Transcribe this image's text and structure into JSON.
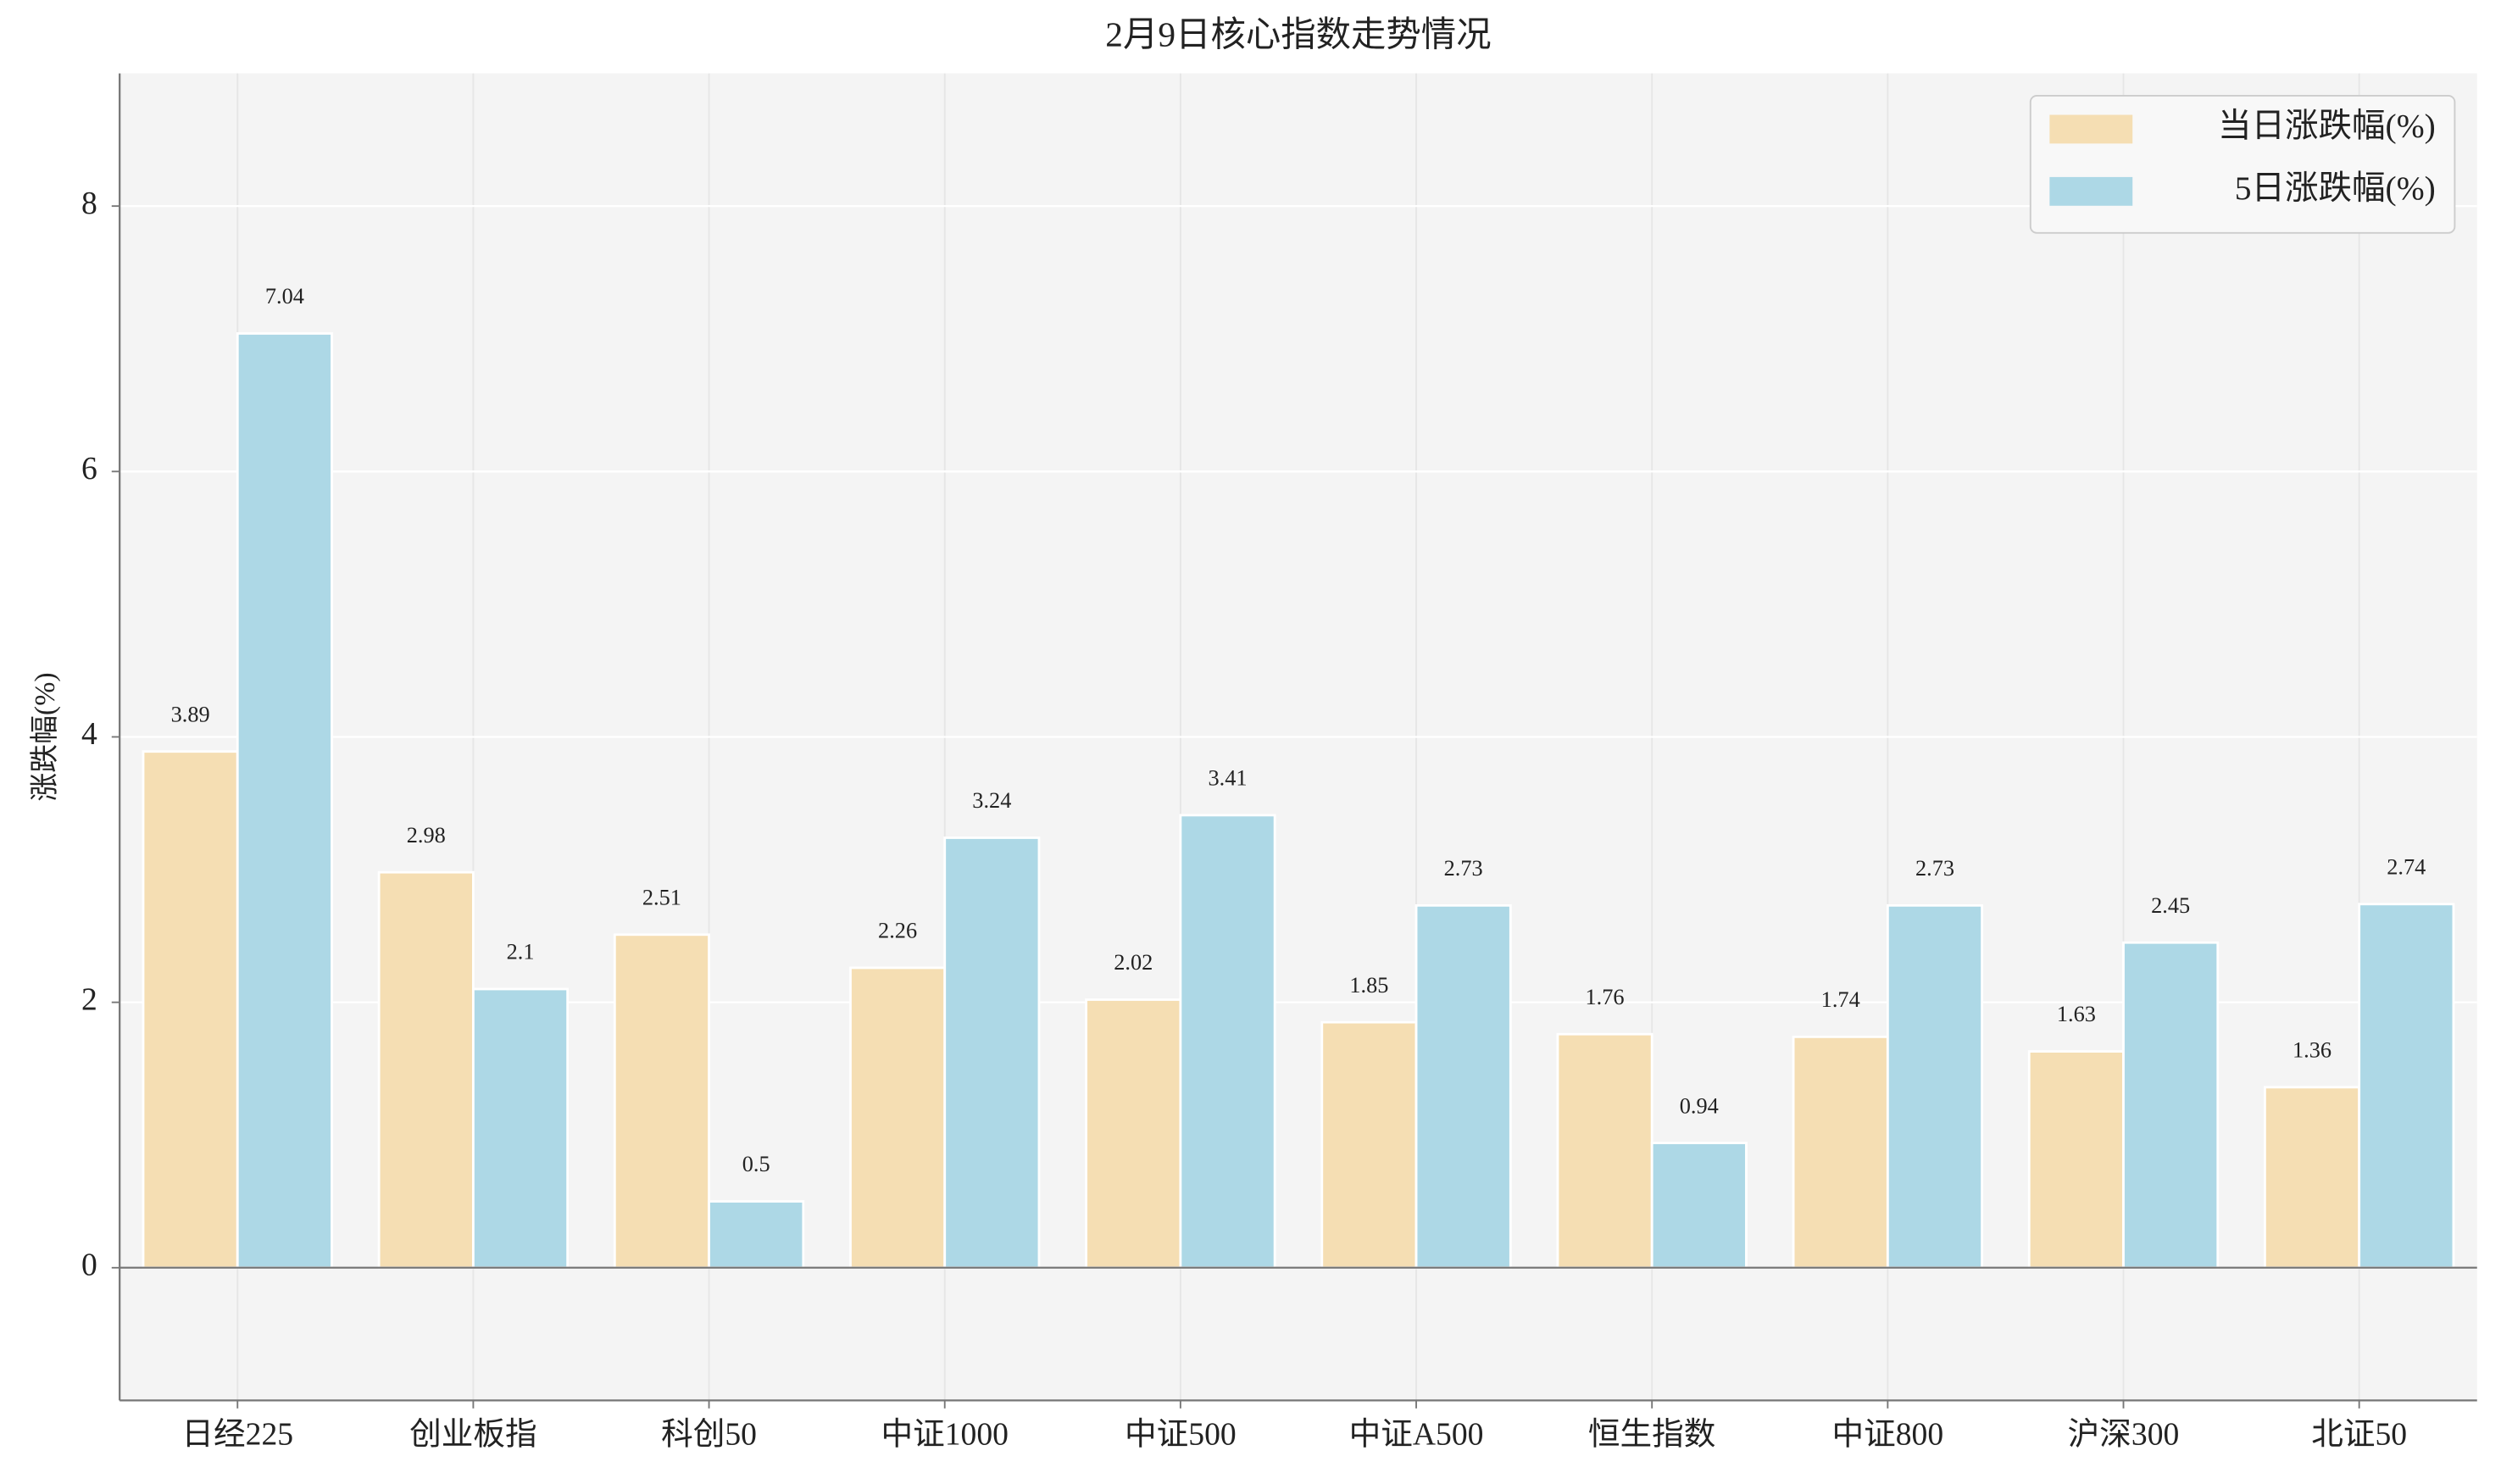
{
  "chart_data": {
    "type": "bar",
    "title": "2月9日核心指数走势情况",
    "y_label": "涨跌幅(%)",
    "categories": [
      "日经225",
      "创业板指",
      "科创50",
      "中证1000",
      "中证500",
      "中证A500",
      "恒生指数",
      "中证800",
      "沪深300",
      "北证50"
    ],
    "series": [
      {
        "name": "当日涨跌幅(%)",
        "color": "#f5deb3",
        "values": [
          3.89,
          2.98,
          2.51,
          2.26,
          2.02,
          1.85,
          1.76,
          1.74,
          1.63,
          1.36
        ]
      },
      {
        "name": "5日涨跌幅(%)",
        "color": "#add8e6",
        "values": [
          7.04,
          2.1,
          0.5,
          3.24,
          3.41,
          2.73,
          0.94,
          2.73,
          2.45,
          2.74
        ]
      }
    ],
    "ylim": [
      -1,
      9
    ],
    "yticks": [
      0,
      2,
      4,
      6,
      8
    ],
    "grid": true,
    "legend": "upper right"
  }
}
